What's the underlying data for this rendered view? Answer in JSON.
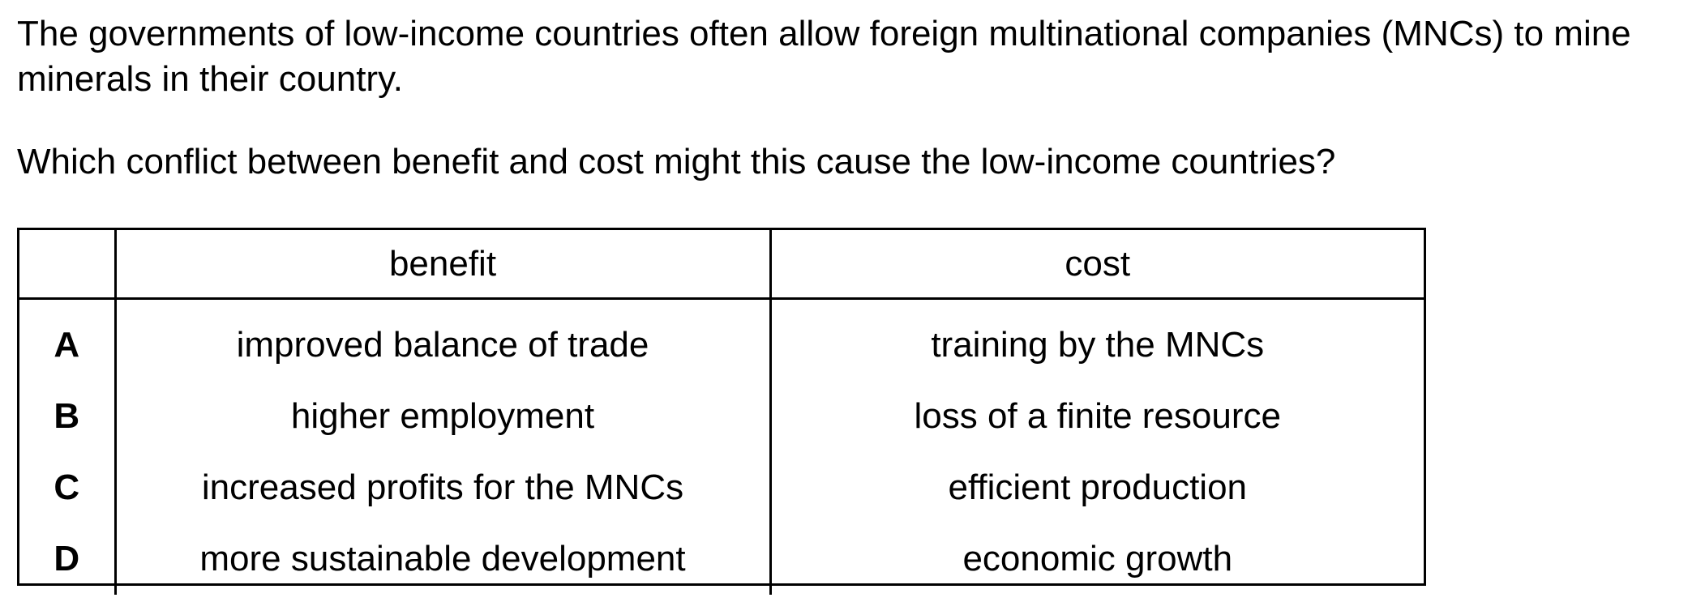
{
  "question": {
    "stem": "The governments of low-income countries often allow foreign multinational companies (MNCs) to mine minerals in their country.",
    "prompt": "Which conflict between benefit and cost might this cause the low-income countries?"
  },
  "table": {
    "headers": {
      "letter": "",
      "benefit": "benefit",
      "cost": "cost"
    },
    "rows": [
      {
        "letter": "A",
        "benefit": "improved balance of trade",
        "cost": "training by the MNCs"
      },
      {
        "letter": "B",
        "benefit": "higher employment",
        "cost": "loss of a finite resource"
      },
      {
        "letter": "C",
        "benefit": "increased profits for the MNCs",
        "cost": "efficient production"
      },
      {
        "letter": "D",
        "benefit": "more sustainable development",
        "cost": "economic growth"
      }
    ]
  }
}
